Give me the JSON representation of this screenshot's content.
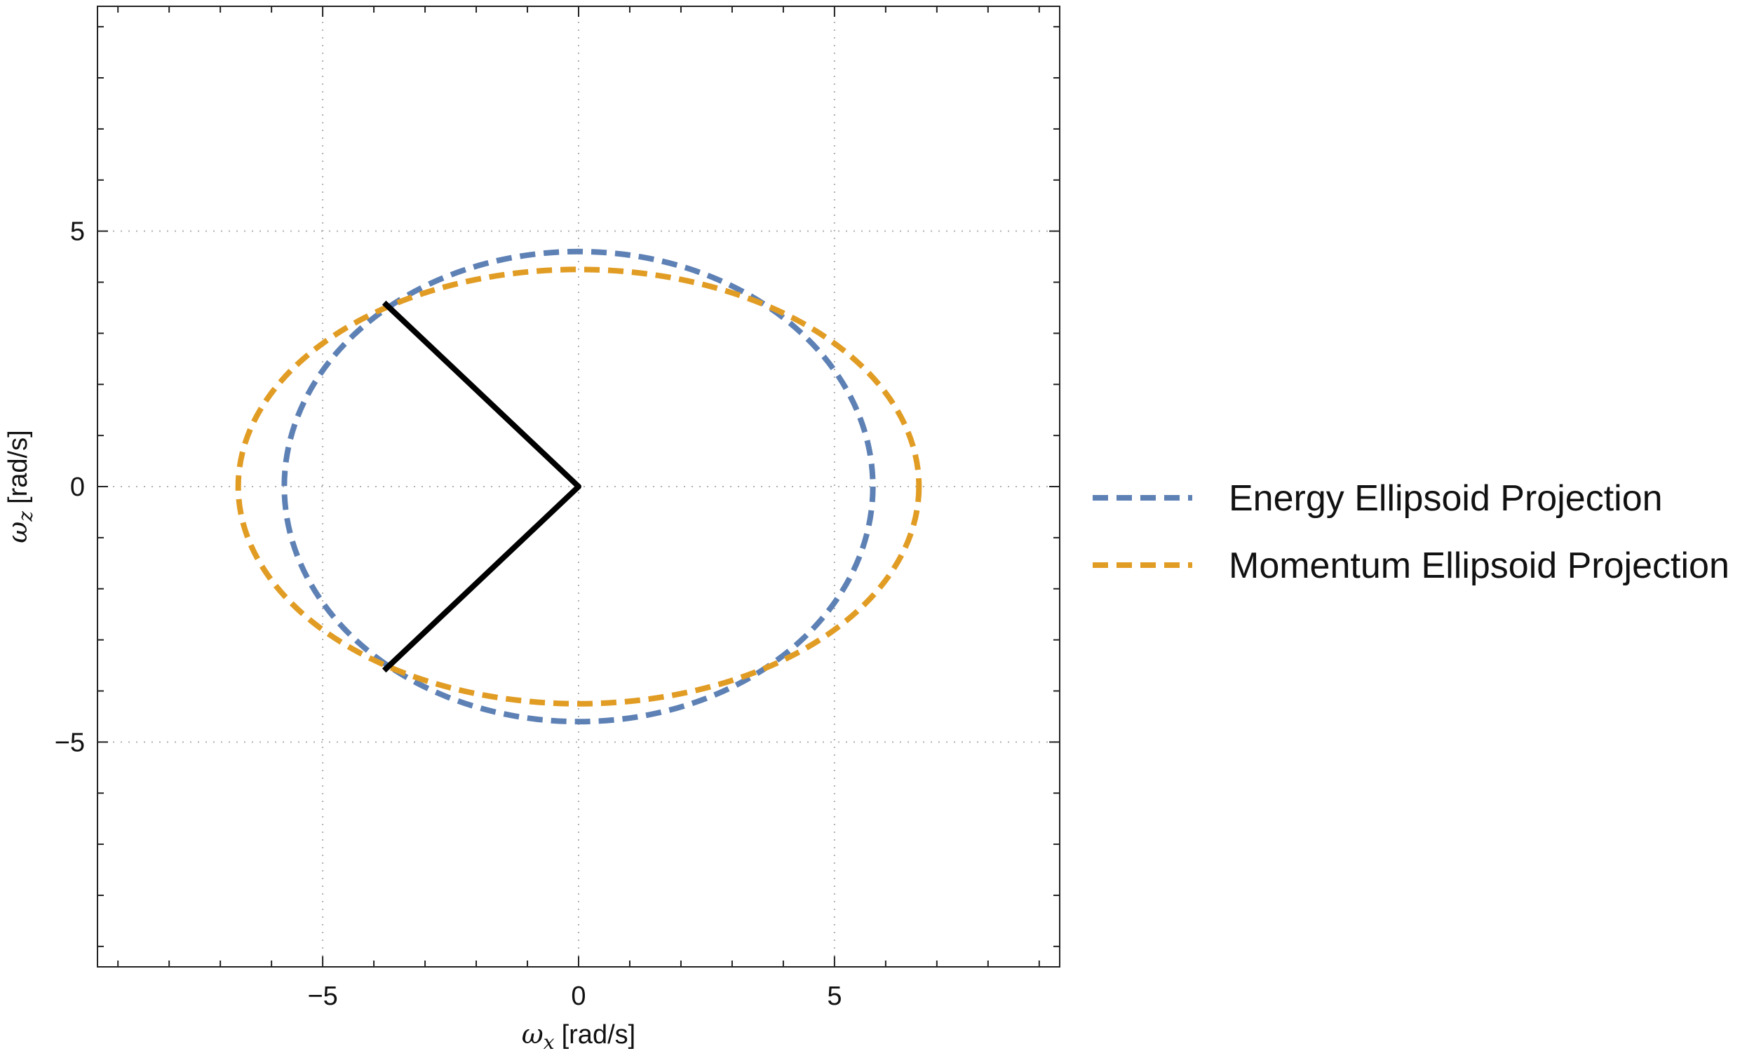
{
  "chart_data": {
    "type": "line",
    "title": "",
    "xlabel": {
      "symbol": "ω",
      "subscript": "x",
      "unit": "[rad/s]"
    },
    "ylabel": {
      "symbol": "ω",
      "subscript": "z",
      "unit": "[rad/s]"
    },
    "xlim": [
      -9.4,
      9.4
    ],
    "ylim": [
      -9.4,
      9.4
    ],
    "xticks": [
      -5,
      0,
      5
    ],
    "yticks": [
      -5,
      0,
      5
    ],
    "xtick_labels": [
      "−5",
      "0",
      "5"
    ],
    "ytick_labels": [
      "−5",
      "0",
      "5"
    ],
    "grid": true,
    "legend_position": "right",
    "series": [
      {
        "name": "Energy Ellipsoid Projection",
        "shape": "ellipse",
        "center": [
          0,
          0
        ],
        "semi_axes": [
          5.75,
          4.6
        ],
        "color": "#5E81B5",
        "style": "dashed"
      },
      {
        "name": "Momentum Ellipsoid Projection",
        "shape": "ellipse",
        "center": [
          0,
          0
        ],
        "semi_axes": [
          6.65,
          4.25
        ],
        "color": "#E19C24",
        "style": "dashed"
      },
      {
        "name": "",
        "shape": "polyline",
        "x": [
          -3.8,
          0,
          -3.8
        ],
        "y": [
          3.6,
          0,
          -3.6
        ],
        "color": "#000000",
        "style": "solid"
      }
    ]
  }
}
